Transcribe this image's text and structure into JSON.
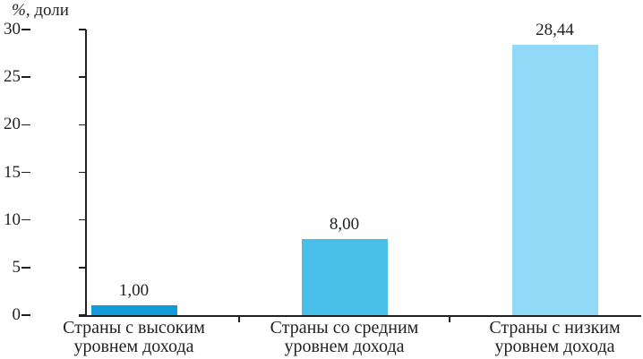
{
  "figure": {
    "background": "#ffffff",
    "text_color": "#231f20",
    "axis_color": "#231f20"
  },
  "chart_data": {
    "type": "bar",
    "title": "",
    "ylabel": "%, доли",
    "ylabel_percent": "%",
    "ylabel_rest": ", доли",
    "xlabel": "",
    "categories": [
      [
        "Страны с высоким",
        "уровнем дохода"
      ],
      [
        "Страны со средним",
        "уровнем дохода"
      ],
      [
        "Страны с низким",
        "уровнем дохода"
      ]
    ],
    "values": [
      1.0,
      8.0,
      28.44
    ],
    "value_labels": [
      "1,00",
      "8,00",
      "28,44"
    ],
    "bar_colors": [
      "#119bd8",
      "#47bfe8",
      "#90d9f7"
    ],
    "ylim": [
      0,
      30
    ],
    "ytick_interval": 5,
    "ytick_labels": [
      "0",
      "5",
      "10",
      "15",
      "20",
      "25",
      "30"
    ],
    "grid": false,
    "legend_position": "none"
  }
}
